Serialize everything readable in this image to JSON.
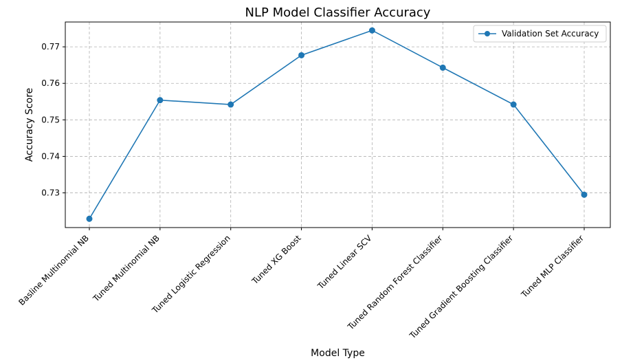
{
  "chart_data": {
    "type": "line",
    "title": "NLP Model Classifier Accuracy",
    "xlabel": "Model Type",
    "ylabel": "Accuracy Score",
    "categories": [
      "Basline Multinomial NB",
      "Tuned Multinomial NB",
      "Tuned Logistic Regression",
      "Tuned XG Boost",
      "Tuned Linear SCV",
      "Tuned Random Forest Classifier",
      "Tuned Gradient Boosting Classifier",
      "Tuned MLP Classifier"
    ],
    "series": [
      {
        "name": "Validation Set Accuracy",
        "values": [
          0.7229,
          0.7554,
          0.7542,
          0.7677,
          0.7745,
          0.7643,
          0.7542,
          0.7295
        ],
        "color": "#1f77b4"
      }
    ],
    "ylim": [
      0.7205,
      0.7768
    ],
    "yticks": [
      0.73,
      0.74,
      0.75,
      0.76,
      0.77
    ],
    "ytick_labels": [
      "0.73",
      "0.74",
      "0.75",
      "0.76",
      "0.77"
    ],
    "grid": true,
    "legend": "upper right"
  }
}
